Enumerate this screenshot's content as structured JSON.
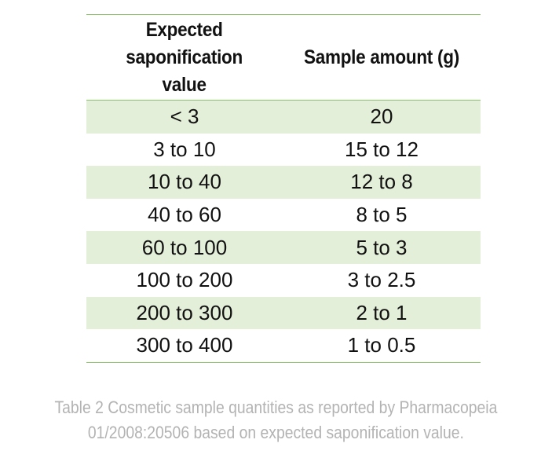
{
  "table": {
    "headers": [
      "Expected\nsaponification\nvalue",
      "Sample amount (g)"
    ],
    "rows": [
      [
        "< 3",
        "20"
      ],
      [
        "3 to 10",
        "15 to 12"
      ],
      [
        "10 to 40",
        "12 to 8"
      ],
      [
        "40 to 60",
        "8 to 5"
      ],
      [
        "60 to 100",
        "5 to 3"
      ],
      [
        "100 to 200",
        "3 to 2.5"
      ],
      [
        "200 to 300",
        "2 to 1"
      ],
      [
        "300 to 400",
        "1 to 0.5"
      ]
    ]
  },
  "caption": "Table 2 Cosmetic sample quantities as reported by Pharmacopeia\n01/2008:20506 based on expected saponification value.",
  "colors": {
    "rule": "#8cc56b",
    "stripe": "#e4efd9",
    "caption": "#b3b3b3"
  }
}
